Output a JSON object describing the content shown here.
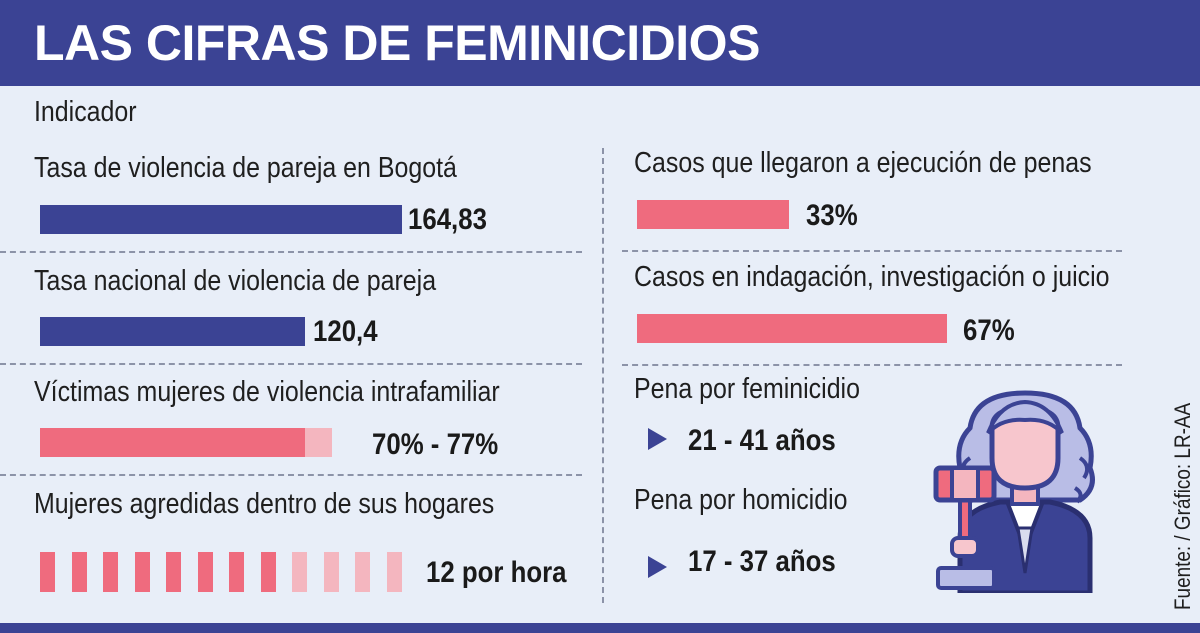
{
  "header": {
    "title": "LAS CIFRAS DE FEMINICIDIOS"
  },
  "column_header": "Indicador",
  "left_items": [
    {
      "label": "Tasa de violencia de pareja en Bogotá",
      "value": "164,83"
    },
    {
      "label": "Tasa nacional de violencia de pareja",
      "value": "120,4"
    },
    {
      "label": "Víctimas mujeres de violencia intrafamiliar",
      "value": "70% - 77%"
    },
    {
      "label": "Mujeres agredidas dentro de sus hogares",
      "value": "12 por hora"
    }
  ],
  "right_items": [
    {
      "label": "Casos que llegaron a ejecución de penas",
      "value": "33%"
    },
    {
      "label": "Casos en indagación, investigación o juicio",
      "value": "67%"
    },
    {
      "label": "Pena por feminicidio",
      "value": "21 - 41 años"
    },
    {
      "label": "Pena por homicidio",
      "value": "17 - 37 años"
    }
  ],
  "source": "Fuente: / Gráfico: LR-AA",
  "colors": {
    "navy": "#3b4394",
    "pink": "#ef6b7e",
    "light_pink": "#f4b6bf",
    "background": "#e8eef8"
  },
  "icons": {
    "illustration": "judge-gavel-icon",
    "bullet": "triangle-bullet-icon"
  }
}
